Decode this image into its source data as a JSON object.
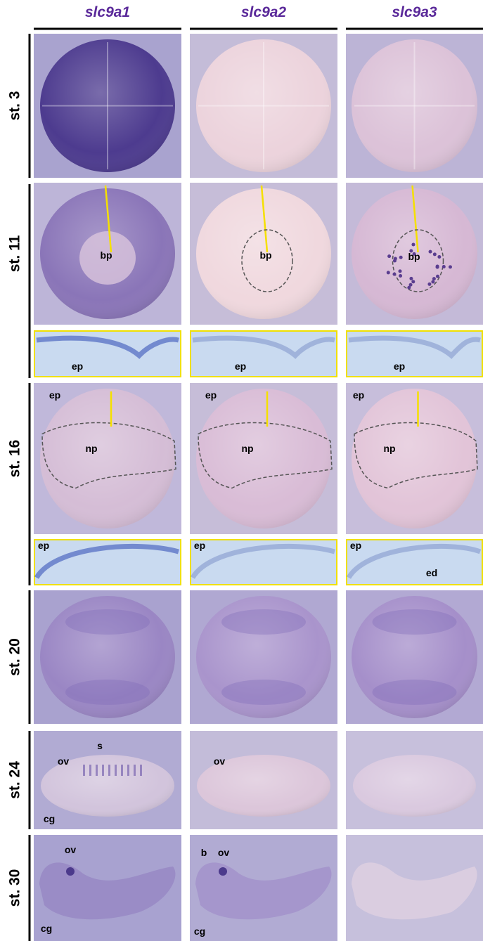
{
  "header": {
    "columns": [
      "slc9a1",
      "slc9a2",
      "slc9a3"
    ]
  },
  "rows": [
    {
      "label": "st. 3"
    },
    {
      "label": "st. 11",
      "panels": [
        [
          "bp"
        ],
        [
          "bp"
        ],
        [
          "bp"
        ]
      ],
      "sections": [
        [
          "ep"
        ],
        [
          "ep"
        ],
        [
          "ep"
        ]
      ]
    },
    {
      "label": "st. 16",
      "panels": [
        [
          "ep",
          "np"
        ],
        [
          "ep",
          "np"
        ],
        [
          "ep",
          "np"
        ]
      ],
      "sections": [
        [
          "ep"
        ],
        [
          "ep"
        ],
        [
          "ep",
          "ed"
        ]
      ]
    },
    {
      "label": "st. 20"
    },
    {
      "label": "st. 24",
      "panels": [
        [
          "ov",
          "s",
          "cg"
        ],
        [
          "ov"
        ],
        []
      ]
    },
    {
      "label": "st. 30",
      "panels": [
        [
          "ov",
          "cg"
        ],
        [
          "b",
          "ov",
          "cg"
        ],
        []
      ]
    }
  ]
}
